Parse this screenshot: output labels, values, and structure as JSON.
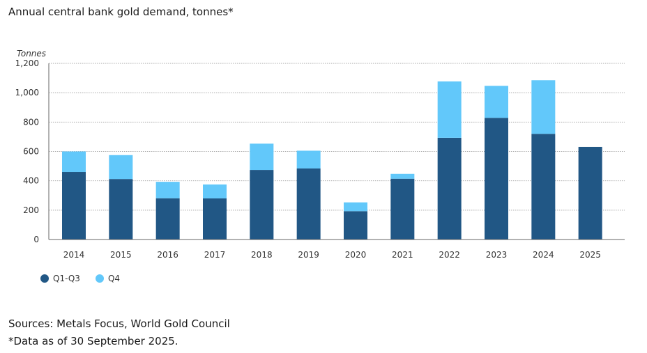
{
  "title": "Annual central bank gold demand, tonnes*",
  "colors": {
    "q1q3": "#215785",
    "q4": "#62c8fa",
    "grid": "#aaaaaa",
    "axis": "#666666"
  },
  "chart_data": {
    "type": "bar",
    "stacked": true,
    "title": "Annual central bank gold demand, tonnes*",
    "ylabel": "Tonnes",
    "xlabel": "",
    "ylim": [
      0,
      1200
    ],
    "yticks": [
      0,
      200,
      400,
      600,
      800,
      1000,
      1200
    ],
    "ytick_labels": [
      "0",
      "200",
      "400",
      "600",
      "800",
      "1,000",
      "1,200"
    ],
    "categories": [
      "2014",
      "2015",
      "2016",
      "2017",
      "2018",
      "2019",
      "2020",
      "2021",
      "2022",
      "2023",
      "2024",
      "2025"
    ],
    "series": [
      {
        "name": "Q1-Q3",
        "color": "#215785",
        "values": [
          460,
          412,
          281,
          280,
          474,
          484,
          193,
          414,
          693,
          829,
          720,
          631
        ]
      },
      {
        "name": "Q4",
        "color": "#62c8fa",
        "values": [
          140,
          163,
          112,
          95,
          179,
          121,
          60,
          33,
          384,
          218,
          365,
          0
        ]
      }
    ],
    "grid": true,
    "legend_position": "bottom-left"
  },
  "legend": [
    {
      "label": "Q1-Q3",
      "color": "#215785"
    },
    {
      "label": "Q4",
      "color": "#62c8fa"
    }
  ],
  "sources": {
    "line1": "Sources: Metals Focus, World Gold Council",
    "line2": "*Data as of 30 September 2025."
  }
}
